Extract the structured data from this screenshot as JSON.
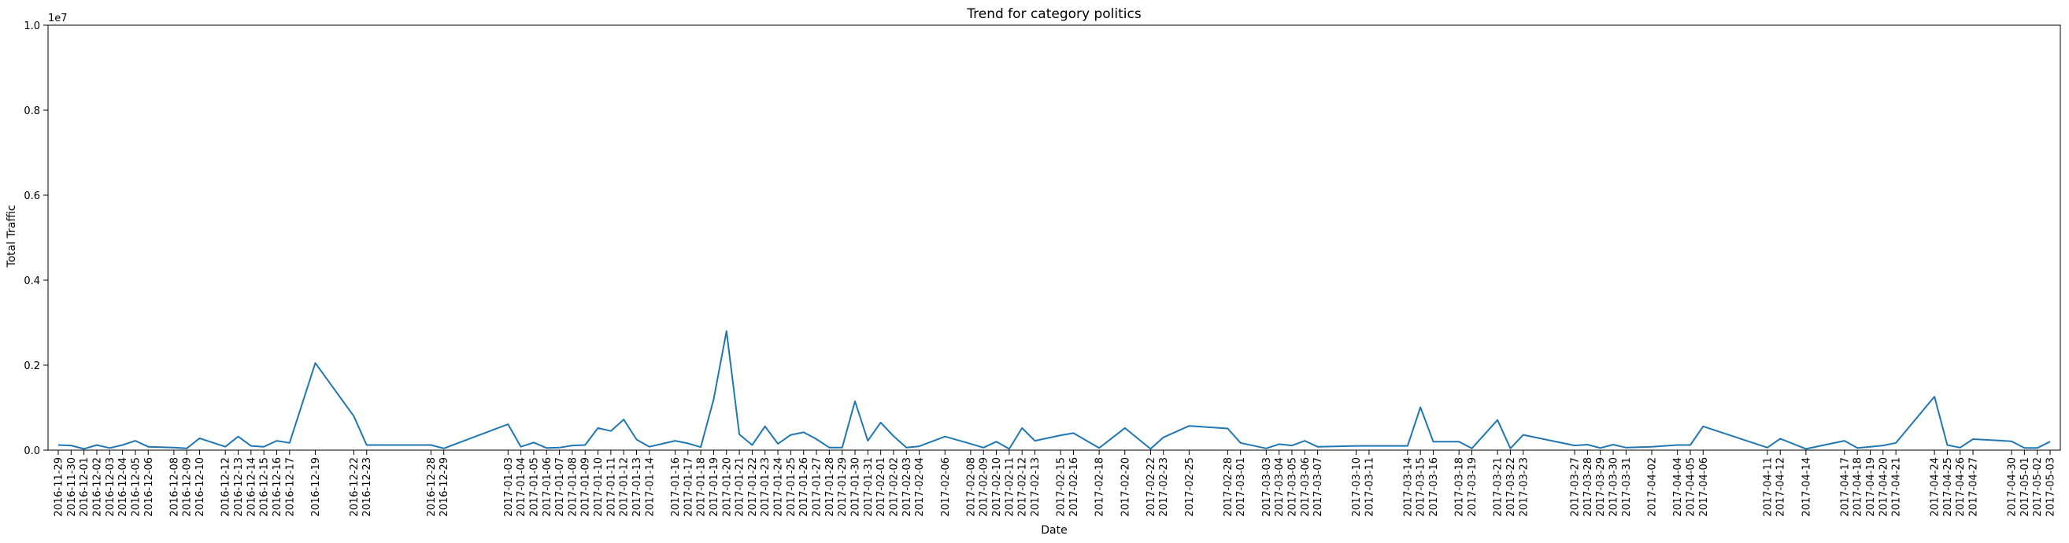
{
  "chart_data": {
    "type": "line",
    "title": "Trend for category politics",
    "xlabel": "Date",
    "ylabel": "Total Traffic",
    "y_offset_label": "1e7",
    "ylim": [
      0,
      10000000
    ],
    "yticks": [
      0,
      2000000,
      4000000,
      6000000,
      8000000,
      10000000
    ],
    "ytick_labels": [
      "0.0",
      "0.2",
      "0.4",
      "0.6",
      "0.8",
      "1.0"
    ],
    "grid": false,
    "line_color": "#1f77b4",
    "x_start": "2016-11-29",
    "x_end": "2017-05-03",
    "series": [
      {
        "x": [
          "2016-11-29",
          "2016-11-30",
          "2016-12-01",
          "2016-12-02",
          "2016-12-03",
          "2016-12-04",
          "2016-12-05",
          "2016-12-06",
          "2016-12-08",
          "2016-12-09",
          "2016-12-10",
          "2016-12-12",
          "2016-12-13",
          "2016-12-14",
          "2016-12-15",
          "2016-12-16",
          "2016-12-17",
          "2016-12-19",
          "2016-12-22",
          "2016-12-23",
          "2016-12-28",
          "2016-12-29",
          "2017-01-03",
          "2017-01-04",
          "2017-01-05",
          "2017-01-06",
          "2017-01-07",
          "2017-01-08",
          "2017-01-09",
          "2017-01-10",
          "2017-01-11",
          "2017-01-12",
          "2017-01-13",
          "2017-01-14",
          "2017-01-16",
          "2017-01-17",
          "2017-01-18",
          "2017-01-19",
          "2017-01-20",
          "2017-01-21",
          "2017-01-22",
          "2017-01-23",
          "2017-01-24",
          "2017-01-25",
          "2017-01-26",
          "2017-01-27",
          "2017-01-28",
          "2017-01-29",
          "2017-01-30",
          "2017-01-31",
          "2017-02-01",
          "2017-02-02",
          "2017-02-03",
          "2017-02-04",
          "2017-02-06",
          "2017-02-08",
          "2017-02-09",
          "2017-02-10",
          "2017-02-11",
          "2017-02-12",
          "2017-02-13",
          "2017-02-15",
          "2017-02-16",
          "2017-02-18",
          "2017-02-20",
          "2017-02-22",
          "2017-02-23",
          "2017-02-25",
          "2017-02-28",
          "2017-03-01",
          "2017-03-03",
          "2017-03-04",
          "2017-03-05",
          "2017-03-06",
          "2017-03-07",
          "2017-03-10",
          "2017-03-11",
          "2017-03-14",
          "2017-03-15",
          "2017-03-16",
          "2017-03-18",
          "2017-03-19",
          "2017-03-21",
          "2017-03-22",
          "2017-03-23",
          "2017-03-27",
          "2017-03-28",
          "2017-03-29",
          "2017-03-30",
          "2017-03-31",
          "2017-04-02",
          "2017-04-04",
          "2017-04-05",
          "2017-04-06",
          "2017-04-11",
          "2017-04-12",
          "2017-04-14",
          "2017-04-17",
          "2017-04-18",
          "2017-04-19",
          "2017-04-20",
          "2017-04-21",
          "2017-04-24",
          "2017-04-25",
          "2017-04-26",
          "2017-04-27",
          "2017-04-30",
          "2017-05-01",
          "2017-05-02",
          "2017-05-03"
        ],
        "y": [
          120000,
          110000,
          30000,
          120000,
          50000,
          120000,
          220000,
          80000,
          60000,
          40000,
          280000,
          80000,
          320000,
          100000,
          80000,
          220000,
          170000,
          2050000,
          800000,
          120000,
          120000,
          40000,
          610000,
          80000,
          180000,
          50000,
          60000,
          110000,
          120000,
          520000,
          450000,
          720000,
          250000,
          80000,
          220000,
          160000,
          70000,
          1200000,
          2800000,
          370000,
          120000,
          560000,
          150000,
          360000,
          420000,
          260000,
          60000,
          60000,
          1150000,
          220000,
          650000,
          330000,
          60000,
          90000,
          320000,
          150000,
          60000,
          200000,
          30000,
          520000,
          220000,
          350000,
          400000,
          50000,
          520000,
          30000,
          300000,
          570000,
          510000,
          170000,
          40000,
          140000,
          110000,
          220000,
          80000,
          100000,
          100000,
          100000,
          1010000,
          200000,
          200000,
          40000,
          710000,
          40000,
          360000,
          110000,
          130000,
          50000,
          130000,
          60000,
          80000,
          120000,
          120000,
          560000,
          60000,
          270000,
          30000,
          220000,
          50000,
          80000,
          110000,
          170000,
          1260000,
          120000,
          60000,
          260000,
          210000,
          50000,
          50000,
          200000
        ]
      }
    ]
  }
}
